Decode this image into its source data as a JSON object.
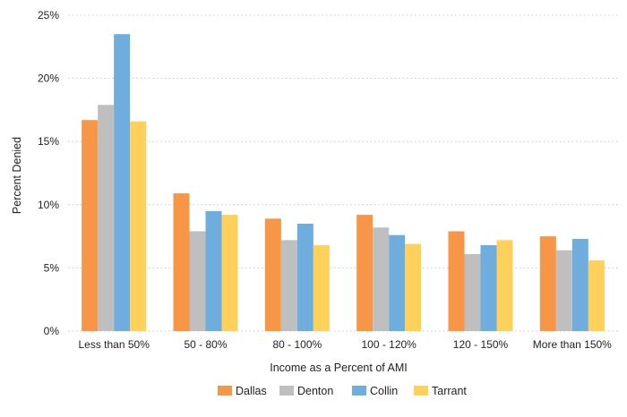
{
  "chart_data": {
    "type": "bar",
    "xlabel": "Income as a Percent of AMI",
    "ylabel": "Percent Denied",
    "ylim": [
      0,
      25
    ],
    "yticks": [
      0,
      5,
      10,
      15,
      20,
      25
    ],
    "ytick_labels": [
      "0%",
      "5%",
      "10%",
      "15%",
      "20%",
      "25%"
    ],
    "grid": "horizontal dotted",
    "legend_position": "bottom",
    "categories": [
      "Less than 50%",
      "50 - 80%",
      "80 - 100%",
      "100 - 120%",
      "120 - 150%",
      "More than 150%"
    ],
    "series": [
      {
        "name": "Dallas",
        "color": "#f79646",
        "values": [
          16.7,
          10.9,
          8.9,
          9.2,
          7.9,
          7.5
        ]
      },
      {
        "name": "Denton",
        "color": "#bfbfbf",
        "values": [
          17.9,
          7.9,
          7.2,
          8.2,
          6.1,
          6.4
        ]
      },
      {
        "name": "Collin",
        "color": "#6fadde",
        "values": [
          23.5,
          9.5,
          8.5,
          7.6,
          6.8,
          7.3
        ]
      },
      {
        "name": "Tarrant",
        "color": "#ffd05a",
        "values": [
          16.6,
          9.2,
          6.8,
          6.9,
          7.2,
          5.6
        ]
      }
    ]
  }
}
